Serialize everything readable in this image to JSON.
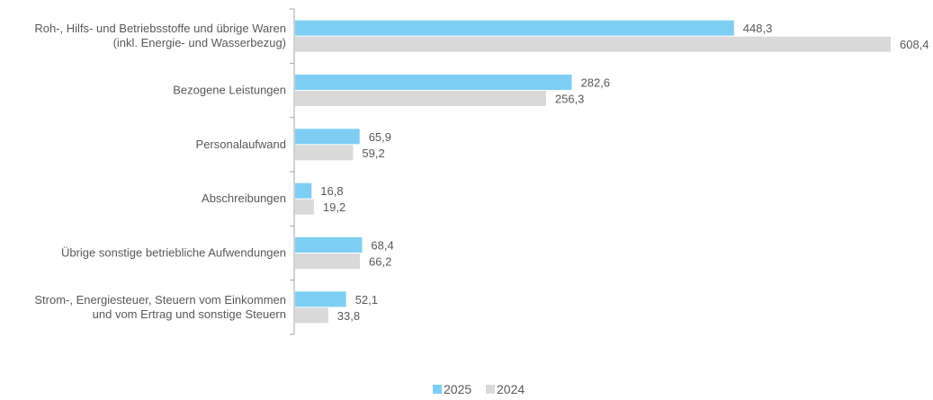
{
  "chart_data": {
    "type": "bar",
    "orientation": "horizontal",
    "categories": [
      [
        "Roh-, Hilfs- und Betriebsstoffe und übrige Waren",
        "(inkl. Energie- und Wasserbezug)"
      ],
      [
        "Bezogene Leistungen"
      ],
      [
        "Personalaufwand"
      ],
      [
        "Abschreibungen"
      ],
      [
        "Übrige sonstige betriebliche Aufwendungen"
      ],
      [
        "Strom-, Energiesteuer, Steuern vom Einkommen",
        "und vom Ertrag und sonstige Steuern"
      ]
    ],
    "series": [
      {
        "name": "2025",
        "color": "#7ecef4",
        "values": [
          448.3,
          282.6,
          65.9,
          16.8,
          68.4,
          52.1
        ],
        "labels": [
          "448,3",
          "282,6",
          "65,9",
          "16,8",
          "68,4",
          "52,1"
        ]
      },
      {
        "name": "2024",
        "color": "#d9d9d9",
        "values": [
          608.4,
          256.3,
          59.2,
          19.2,
          66.2,
          33.8
        ],
        "labels": [
          "608,4",
          "256,3",
          "59,2",
          "19,2",
          "66,2",
          "33,8"
        ]
      }
    ],
    "xlim": [
      0,
      608.4
    ],
    "grid": false,
    "legend_position": "bottom-center"
  }
}
